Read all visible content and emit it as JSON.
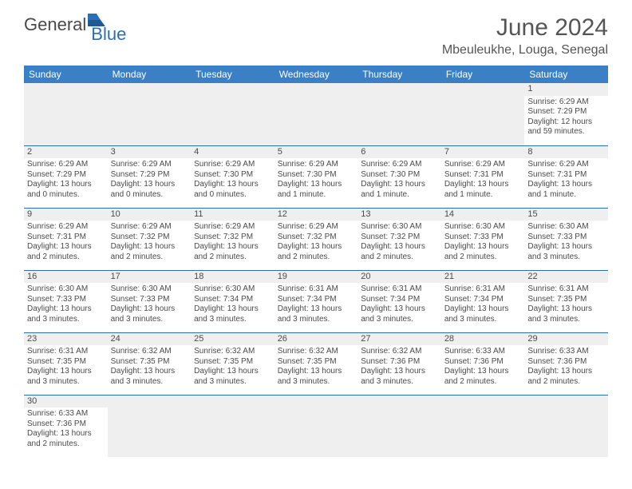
{
  "logo": {
    "text1": "General",
    "text2": "Blue"
  },
  "title": "June 2024",
  "location": "Mbeuleukhe, Louga, Senegal",
  "colors": {
    "header_bg": "#3b7fc4",
    "header_text": "#ffffff",
    "border": "#2a6fb5",
    "daynum_bg": "#efefef",
    "text": "#4a4a4a",
    "logo_accent": "#2a6fb5"
  },
  "fonts": {
    "title_size": 30,
    "location_size": 16,
    "dayhead_size": 12,
    "cell_size": 10,
    "daynum_size": 11
  },
  "day_headers": [
    "Sunday",
    "Monday",
    "Tuesday",
    "Wednesday",
    "Thursday",
    "Friday",
    "Saturday"
  ],
  "weeks": [
    [
      null,
      null,
      null,
      null,
      null,
      null,
      {
        "n": "1",
        "sr": "Sunrise: 6:29 AM",
        "ss": "Sunset: 7:29 PM",
        "dl": "Daylight: 12 hours and 59 minutes."
      }
    ],
    [
      {
        "n": "2",
        "sr": "Sunrise: 6:29 AM",
        "ss": "Sunset: 7:29 PM",
        "dl": "Daylight: 13 hours and 0 minutes."
      },
      {
        "n": "3",
        "sr": "Sunrise: 6:29 AM",
        "ss": "Sunset: 7:29 PM",
        "dl": "Daylight: 13 hours and 0 minutes."
      },
      {
        "n": "4",
        "sr": "Sunrise: 6:29 AM",
        "ss": "Sunset: 7:30 PM",
        "dl": "Daylight: 13 hours and 0 minutes."
      },
      {
        "n": "5",
        "sr": "Sunrise: 6:29 AM",
        "ss": "Sunset: 7:30 PM",
        "dl": "Daylight: 13 hours and 1 minute."
      },
      {
        "n": "6",
        "sr": "Sunrise: 6:29 AM",
        "ss": "Sunset: 7:30 PM",
        "dl": "Daylight: 13 hours and 1 minute."
      },
      {
        "n": "7",
        "sr": "Sunrise: 6:29 AM",
        "ss": "Sunset: 7:31 PM",
        "dl": "Daylight: 13 hours and 1 minute."
      },
      {
        "n": "8",
        "sr": "Sunrise: 6:29 AM",
        "ss": "Sunset: 7:31 PM",
        "dl": "Daylight: 13 hours and 1 minute."
      }
    ],
    [
      {
        "n": "9",
        "sr": "Sunrise: 6:29 AM",
        "ss": "Sunset: 7:31 PM",
        "dl": "Daylight: 13 hours and 2 minutes."
      },
      {
        "n": "10",
        "sr": "Sunrise: 6:29 AM",
        "ss": "Sunset: 7:32 PM",
        "dl": "Daylight: 13 hours and 2 minutes."
      },
      {
        "n": "11",
        "sr": "Sunrise: 6:29 AM",
        "ss": "Sunset: 7:32 PM",
        "dl": "Daylight: 13 hours and 2 minutes."
      },
      {
        "n": "12",
        "sr": "Sunrise: 6:29 AM",
        "ss": "Sunset: 7:32 PM",
        "dl": "Daylight: 13 hours and 2 minutes."
      },
      {
        "n": "13",
        "sr": "Sunrise: 6:30 AM",
        "ss": "Sunset: 7:32 PM",
        "dl": "Daylight: 13 hours and 2 minutes."
      },
      {
        "n": "14",
        "sr": "Sunrise: 6:30 AM",
        "ss": "Sunset: 7:33 PM",
        "dl": "Daylight: 13 hours and 2 minutes."
      },
      {
        "n": "15",
        "sr": "Sunrise: 6:30 AM",
        "ss": "Sunset: 7:33 PM",
        "dl": "Daylight: 13 hours and 3 minutes."
      }
    ],
    [
      {
        "n": "16",
        "sr": "Sunrise: 6:30 AM",
        "ss": "Sunset: 7:33 PM",
        "dl": "Daylight: 13 hours and 3 minutes."
      },
      {
        "n": "17",
        "sr": "Sunrise: 6:30 AM",
        "ss": "Sunset: 7:33 PM",
        "dl": "Daylight: 13 hours and 3 minutes."
      },
      {
        "n": "18",
        "sr": "Sunrise: 6:30 AM",
        "ss": "Sunset: 7:34 PM",
        "dl": "Daylight: 13 hours and 3 minutes."
      },
      {
        "n": "19",
        "sr": "Sunrise: 6:31 AM",
        "ss": "Sunset: 7:34 PM",
        "dl": "Daylight: 13 hours and 3 minutes."
      },
      {
        "n": "20",
        "sr": "Sunrise: 6:31 AM",
        "ss": "Sunset: 7:34 PM",
        "dl": "Daylight: 13 hours and 3 minutes."
      },
      {
        "n": "21",
        "sr": "Sunrise: 6:31 AM",
        "ss": "Sunset: 7:34 PM",
        "dl": "Daylight: 13 hours and 3 minutes."
      },
      {
        "n": "22",
        "sr": "Sunrise: 6:31 AM",
        "ss": "Sunset: 7:35 PM",
        "dl": "Daylight: 13 hours and 3 minutes."
      }
    ],
    [
      {
        "n": "23",
        "sr": "Sunrise: 6:31 AM",
        "ss": "Sunset: 7:35 PM",
        "dl": "Daylight: 13 hours and 3 minutes."
      },
      {
        "n": "24",
        "sr": "Sunrise: 6:32 AM",
        "ss": "Sunset: 7:35 PM",
        "dl": "Daylight: 13 hours and 3 minutes."
      },
      {
        "n": "25",
        "sr": "Sunrise: 6:32 AM",
        "ss": "Sunset: 7:35 PM",
        "dl": "Daylight: 13 hours and 3 minutes."
      },
      {
        "n": "26",
        "sr": "Sunrise: 6:32 AM",
        "ss": "Sunset: 7:35 PM",
        "dl": "Daylight: 13 hours and 3 minutes."
      },
      {
        "n": "27",
        "sr": "Sunrise: 6:32 AM",
        "ss": "Sunset: 7:36 PM",
        "dl": "Daylight: 13 hours and 3 minutes."
      },
      {
        "n": "28",
        "sr": "Sunrise: 6:33 AM",
        "ss": "Sunset: 7:36 PM",
        "dl": "Daylight: 13 hours and 2 minutes."
      },
      {
        "n": "29",
        "sr": "Sunrise: 6:33 AM",
        "ss": "Sunset: 7:36 PM",
        "dl": "Daylight: 13 hours and 2 minutes."
      }
    ],
    [
      {
        "n": "30",
        "sr": "Sunrise: 6:33 AM",
        "ss": "Sunset: 7:36 PM",
        "dl": "Daylight: 13 hours and 2 minutes."
      },
      null,
      null,
      null,
      null,
      null,
      null
    ]
  ]
}
